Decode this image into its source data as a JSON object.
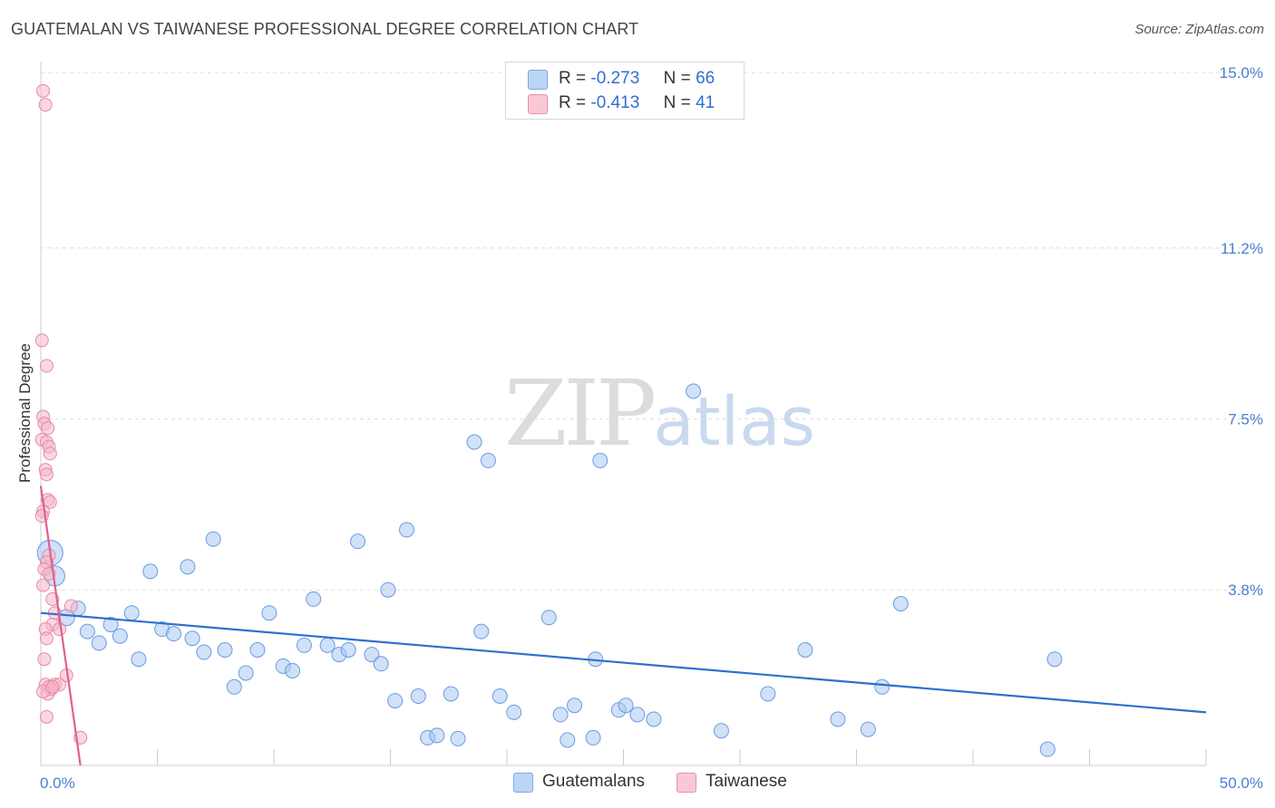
{
  "header": {
    "title": "GUATEMALAN VS TAIWANESE PROFESSIONAL DEGREE CORRELATION CHART",
    "source": "Source: ZipAtlas.com"
  },
  "watermark": {
    "zip": "ZIP",
    "atlas": "atlas"
  },
  "legend": {
    "rows": [
      {
        "r_label": "R =",
        "r_value": "-0.273",
        "n_label": "N =",
        "n_value": "66",
        "color": "#a9c8f2"
      },
      {
        "r_label": "R =",
        "r_value": "-0.413",
        "n_label": "N =",
        "n_value": "41",
        "color": "#f7b6c8"
      }
    ]
  },
  "bottom_legend": {
    "series1": "Guatemalans",
    "series2": "Taiwanese"
  },
  "chart_data": {
    "type": "scatter",
    "title": "GUATEMALAN VS TAIWANESE PROFESSIONAL DEGREE CORRELATION CHART",
    "xlabel": "",
    "ylabel": "Professional Degree",
    "xlim": [
      0,
      50
    ],
    "ylim": [
      0,
      15
    ],
    "x_tick_labels": [
      "0.0%",
      "50.0%"
    ],
    "y_ticks": [
      3.8,
      7.5,
      11.2,
      15.0
    ],
    "y_tick_labels": [
      "3.8%",
      "7.5%",
      "11.2%",
      "15.0%"
    ],
    "series": [
      {
        "name": "Guatemalans",
        "color": "#a9c8f2",
        "stroke": "#6b9be0",
        "trend": {
          "x": [
            0,
            50
          ],
          "y": [
            3.3,
            1.15
          ],
          "color": "#2f6fd0"
        },
        "points": [
          [
            0.4,
            4.6,
            14
          ],
          [
            0.6,
            4.1,
            11
          ],
          [
            1.1,
            3.2,
            9
          ],
          [
            1.6,
            3.4,
            8
          ],
          [
            2.0,
            2.9,
            8
          ],
          [
            2.5,
            2.65,
            8
          ],
          [
            3.0,
            3.05,
            8
          ],
          [
            3.4,
            2.8,
            8
          ],
          [
            3.9,
            3.3,
            8
          ],
          [
            4.2,
            2.3,
            8
          ],
          [
            4.7,
            4.2,
            8
          ],
          [
            5.2,
            2.95,
            8
          ],
          [
            5.7,
            2.85,
            8
          ],
          [
            6.3,
            4.3,
            8
          ],
          [
            6.5,
            2.75,
            8
          ],
          [
            7.0,
            2.45,
            8
          ],
          [
            7.4,
            4.9,
            8
          ],
          [
            7.9,
            2.5,
            8
          ],
          [
            8.3,
            1.7,
            8
          ],
          [
            8.8,
            2.0,
            8
          ],
          [
            9.3,
            2.5,
            8
          ],
          [
            9.8,
            3.3,
            8
          ],
          [
            10.4,
            2.15,
            8
          ],
          [
            10.8,
            2.05,
            8
          ],
          [
            11.3,
            2.6,
            8
          ],
          [
            11.7,
            3.6,
            8
          ],
          [
            12.3,
            2.6,
            8
          ],
          [
            12.8,
            2.4,
            8
          ],
          [
            13.2,
            2.5,
            8
          ],
          [
            13.6,
            4.85,
            8
          ],
          [
            14.2,
            2.4,
            8
          ],
          [
            14.6,
            2.2,
            8
          ],
          [
            14.9,
            3.8,
            8
          ],
          [
            15.2,
            1.4,
            8
          ],
          [
            15.7,
            5.1,
            8
          ],
          [
            16.2,
            1.5,
            8
          ],
          [
            16.6,
            0.6,
            8
          ],
          [
            17.0,
            0.65,
            8
          ],
          [
            17.6,
            1.55,
            8
          ],
          [
            17.9,
            0.58,
            8
          ],
          [
            18.6,
            7.0,
            8
          ],
          [
            18.9,
            2.9,
            8
          ],
          [
            19.2,
            6.6,
            8
          ],
          [
            19.7,
            1.5,
            8
          ],
          [
            20.3,
            1.15,
            8
          ],
          [
            21.8,
            3.2,
            8
          ],
          [
            22.3,
            1.1,
            8
          ],
          [
            22.6,
            0.55,
            8
          ],
          [
            22.9,
            1.3,
            8
          ],
          [
            23.7,
            0.6,
            8
          ],
          [
            23.8,
            2.3,
            8
          ],
          [
            24.0,
            6.6,
            8
          ],
          [
            24.8,
            1.2,
            8
          ],
          [
            25.1,
            1.3,
            8
          ],
          [
            25.6,
            1.1,
            8
          ],
          [
            26.3,
            1.0,
            8
          ],
          [
            28.0,
            8.1,
            8
          ],
          [
            29.2,
            0.75,
            8
          ],
          [
            31.2,
            1.55,
            8
          ],
          [
            32.8,
            2.5,
            8
          ],
          [
            34.2,
            1.0,
            8
          ],
          [
            35.5,
            0.78,
            8
          ],
          [
            36.1,
            1.7,
            8
          ],
          [
            36.9,
            3.5,
            8
          ],
          [
            43.2,
            0.35,
            8
          ],
          [
            43.5,
            2.3,
            8
          ]
        ]
      },
      {
        "name": "Taiwanese",
        "color": "#f7b6c8",
        "stroke": "#e58aa5",
        "trend": {
          "x": [
            0,
            1.7
          ],
          "y": [
            6.05,
            0.0
          ],
          "color": "#e0608a"
        },
        "points": [
          [
            0.1,
            14.6,
            7
          ],
          [
            0.2,
            14.3,
            7
          ],
          [
            0.05,
            9.2,
            7
          ],
          [
            0.25,
            8.65,
            7
          ],
          [
            0.1,
            7.55,
            7
          ],
          [
            0.15,
            7.4,
            7
          ],
          [
            0.3,
            7.3,
            7
          ],
          [
            0.05,
            7.05,
            7
          ],
          [
            0.25,
            7.0,
            7
          ],
          [
            0.35,
            6.9,
            7
          ],
          [
            0.4,
            6.75,
            7
          ],
          [
            0.2,
            6.4,
            7
          ],
          [
            0.25,
            6.3,
            7
          ],
          [
            0.3,
            5.75,
            7
          ],
          [
            0.4,
            5.7,
            7
          ],
          [
            0.1,
            5.5,
            7
          ],
          [
            0.05,
            5.4,
            7
          ],
          [
            0.35,
            4.55,
            7
          ],
          [
            0.25,
            4.4,
            7
          ],
          [
            0.15,
            4.25,
            7
          ],
          [
            0.35,
            4.15,
            7
          ],
          [
            0.1,
            3.9,
            7
          ],
          [
            0.5,
            3.6,
            7
          ],
          [
            1.3,
            3.45,
            7
          ],
          [
            0.6,
            3.3,
            7
          ],
          [
            0.5,
            3.05,
            7
          ],
          [
            0.8,
            2.95,
            7
          ],
          [
            0.2,
            2.95,
            7
          ],
          [
            0.25,
            2.75,
            7
          ],
          [
            0.15,
            2.3,
            7
          ],
          [
            0.2,
            1.75,
            7
          ],
          [
            0.35,
            1.7,
            7
          ],
          [
            0.6,
            1.75,
            7
          ],
          [
            0.8,
            1.75,
            7
          ],
          [
            1.1,
            1.95,
            7
          ],
          [
            0.3,
            1.55,
            7
          ],
          [
            0.45,
            1.65,
            7
          ],
          [
            0.1,
            1.6,
            7
          ],
          [
            0.25,
            1.05,
            7
          ],
          [
            1.7,
            0.6,
            7
          ],
          [
            0.5,
            1.7,
            7
          ]
        ]
      }
    ]
  }
}
